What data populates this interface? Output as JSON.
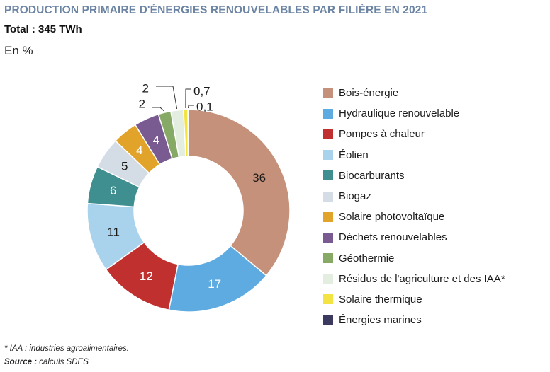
{
  "header": {
    "title": "PRODUCTION PRIMAIRE D'ÉNERGIES RENOUVELABLES PAR FILIÈRE EN 2021",
    "total": "Total : 345 TWh",
    "unit": "En %"
  },
  "chart_data": {
    "type": "pie",
    "donut": true,
    "unit": "%",
    "legend_position": "right",
    "slices": [
      {
        "label": "Bois-énergie",
        "value": 36,
        "display": "36",
        "color": "#c6917a"
      },
      {
        "label": "Hydraulique renouvelable",
        "value": 17,
        "display": "17",
        "color": "#5dabe0"
      },
      {
        "label": "Pompes à chaleur",
        "value": 12,
        "display": "12",
        "color": "#c0302f"
      },
      {
        "label": "Éolien",
        "value": 11,
        "display": "11",
        "color": "#a9d2ec"
      },
      {
        "label": "Biocarburants",
        "value": 6,
        "display": "6",
        "color": "#3f8e90"
      },
      {
        "label": "Biogaz",
        "value": 5,
        "display": "5",
        "color": "#d4dde6"
      },
      {
        "label": "Solaire photovoltaïque",
        "value": 4,
        "display": "4",
        "color": "#e2a32b"
      },
      {
        "label": "Déchets renouvelables",
        "value": 4,
        "display": "4",
        "color": "#7a5b91"
      },
      {
        "label": "Géothermie",
        "value": 2,
        "display": "2",
        "color": "#86a966"
      },
      {
        "label": "Résidus de l'agriculture et des IAA*",
        "value": 2,
        "display": "2",
        "color": "#e3eee0"
      },
      {
        "label": "Solaire thermique",
        "value": 0.7,
        "display": "0,7",
        "color": "#f3e443"
      },
      {
        "label": "Énergies marines",
        "value": 0.1,
        "display": "0,1",
        "color": "#3b3a5e"
      }
    ]
  },
  "footer": {
    "footnote": "* IAA : industries agroalimentaires.",
    "source_label": "Source :",
    "source_text": " calculs SDES"
  }
}
